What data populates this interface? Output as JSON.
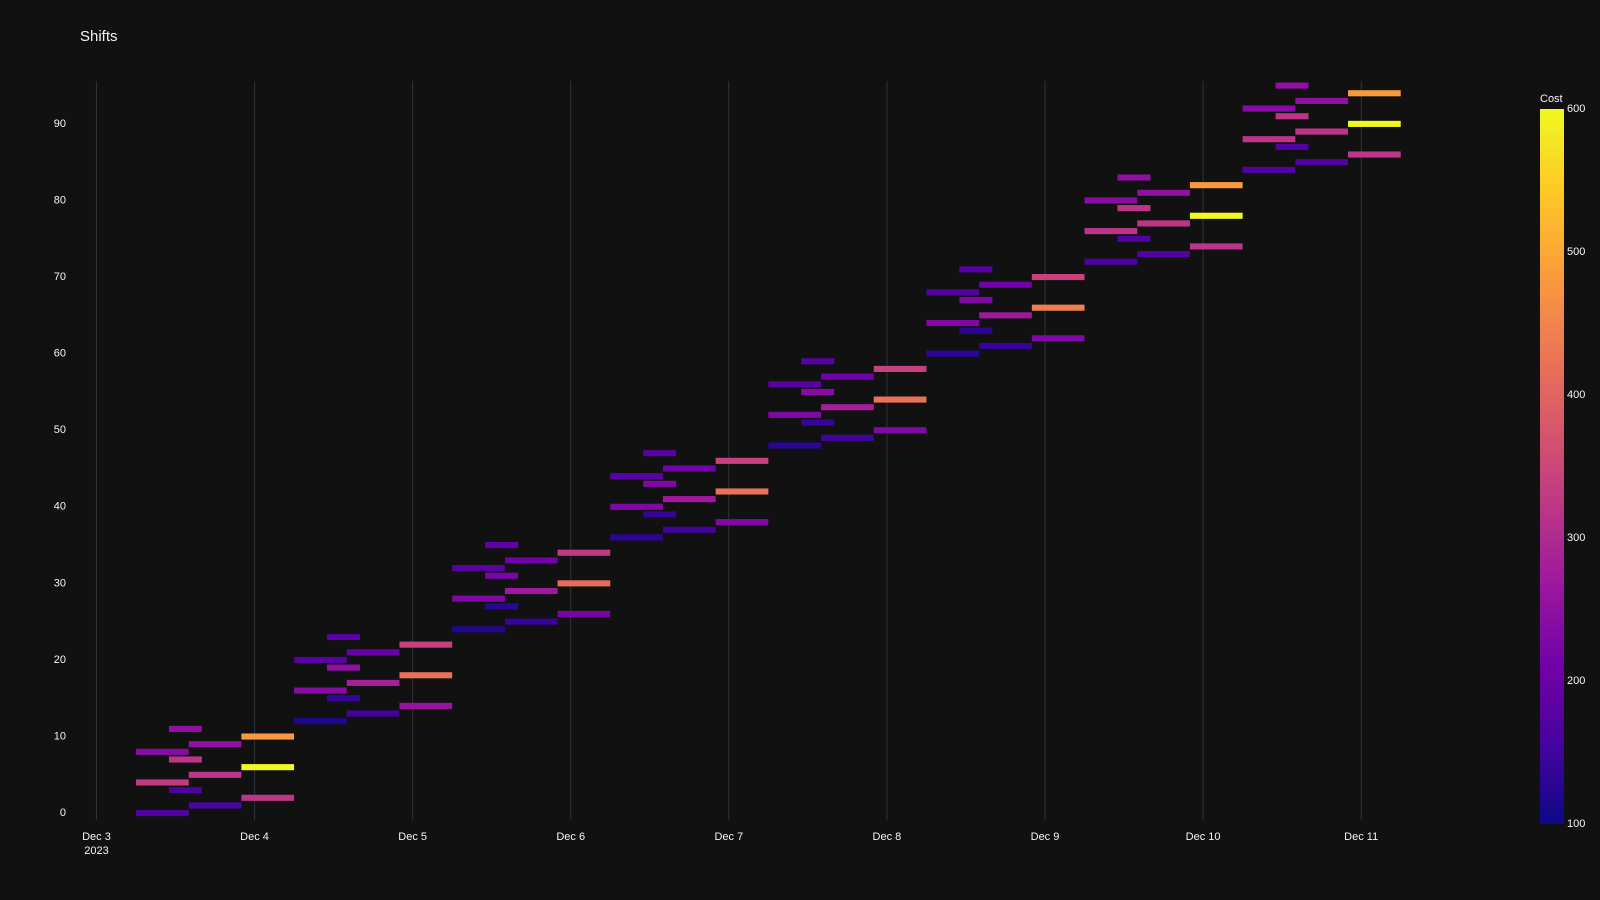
{
  "chart_data": {
    "type": "timeline",
    "title": "Shifts",
    "y": [
      0,
      1,
      2,
      3,
      4,
      5,
      6,
      7,
      8,
      9,
      10,
      11,
      12,
      13,
      14,
      15,
      16,
      17,
      18,
      19,
      20,
      21,
      22,
      23,
      24,
      25,
      26,
      27,
      28,
      29,
      30,
      31,
      32,
      33,
      34,
      35,
      36,
      37,
      38,
      39,
      40,
      41,
      42,
      43,
      44,
      45,
      46,
      47,
      48,
      49,
      50,
      51,
      52,
      53,
      54,
      55,
      56,
      57,
      58,
      59,
      60,
      61,
      62,
      63,
      64,
      65,
      66,
      67,
      68,
      69,
      70,
      71,
      72,
      73,
      74,
      75,
      76,
      77,
      78,
      79,
      80,
      81,
      82,
      83,
      84,
      85,
      86,
      87,
      88,
      89,
      90,
      91,
      92,
      93,
      94,
      95
    ],
    "start": [
      "2023-12-03T06:00",
      "2023-12-03T14:00",
      "2023-12-03T22:00",
      "2023-12-03T11:00",
      "2023-12-03T06:00",
      "2023-12-03T14:00",
      "2023-12-03T22:00",
      "2023-12-03T11:00",
      "2023-12-03T06:00",
      "2023-12-03T14:00",
      "2023-12-03T22:00",
      "2023-12-03T11:00",
      "2023-12-04T06:00",
      "2023-12-04T14:00",
      "2023-12-04T22:00",
      "2023-12-04T11:00",
      "2023-12-04T06:00",
      "2023-12-04T14:00",
      "2023-12-04T22:00",
      "2023-12-04T11:00",
      "2023-12-04T06:00",
      "2023-12-04T14:00",
      "2023-12-04T22:00",
      "2023-12-04T11:00",
      "2023-12-05T06:00",
      "2023-12-05T14:00",
      "2023-12-05T22:00",
      "2023-12-05T11:00",
      "2023-12-05T06:00",
      "2023-12-05T14:00",
      "2023-12-05T22:00",
      "2023-12-05T11:00",
      "2023-12-05T06:00",
      "2023-12-05T14:00",
      "2023-12-05T22:00",
      "2023-12-05T11:00",
      "2023-12-06T06:00",
      "2023-12-06T14:00",
      "2023-12-06T22:00",
      "2023-12-06T11:00",
      "2023-12-06T06:00",
      "2023-12-06T14:00",
      "2023-12-06T22:00",
      "2023-12-06T11:00",
      "2023-12-06T06:00",
      "2023-12-06T14:00",
      "2023-12-06T22:00",
      "2023-12-06T11:00",
      "2023-12-07T06:00",
      "2023-12-07T14:00",
      "2023-12-07T22:00",
      "2023-12-07T11:00",
      "2023-12-07T06:00",
      "2023-12-07T14:00",
      "2023-12-07T22:00",
      "2023-12-07T11:00",
      "2023-12-07T06:00",
      "2023-12-07T14:00",
      "2023-12-07T22:00",
      "2023-12-07T11:00",
      "2023-12-08T06:00",
      "2023-12-08T14:00",
      "2023-12-08T22:00",
      "2023-12-08T11:00",
      "2023-12-08T06:00",
      "2023-12-08T14:00",
      "2023-12-08T22:00",
      "2023-12-08T11:00",
      "2023-12-08T06:00",
      "2023-12-08T14:00",
      "2023-12-08T22:00",
      "2023-12-08T11:00",
      "2023-12-09T06:00",
      "2023-12-09T14:00",
      "2023-12-09T22:00",
      "2023-12-09T11:00",
      "2023-12-09T06:00",
      "2023-12-09T14:00",
      "2023-12-09T22:00",
      "2023-12-09T11:00",
      "2023-12-09T06:00",
      "2023-12-09T14:00",
      "2023-12-09T22:00",
      "2023-12-09T11:00",
      "2023-12-10T06:00",
      "2023-12-10T14:00",
      "2023-12-10T22:00",
      "2023-12-10T11:00",
      "2023-12-10T06:00",
      "2023-12-10T14:00",
      "2023-12-10T22:00",
      "2023-12-10T11:00",
      "2023-12-10T06:00",
      "2023-12-10T14:00",
      "2023-12-10T22:00",
      "2023-12-10T11:00"
    ],
    "end": [
      "2023-12-03T14:00",
      "2023-12-03T22:00",
      "2023-12-04T06:00",
      "2023-12-03T16:00",
      "2023-12-03T14:00",
      "2023-12-03T22:00",
      "2023-12-04T06:00",
      "2023-12-03T16:00",
      "2023-12-03T14:00",
      "2023-12-03T22:00",
      "2023-12-04T06:00",
      "2023-12-03T16:00",
      "2023-12-04T14:00",
      "2023-12-04T22:00",
      "2023-12-05T06:00",
      "2023-12-04T16:00",
      "2023-12-04T14:00",
      "2023-12-04T22:00",
      "2023-12-05T06:00",
      "2023-12-04T16:00",
      "2023-12-04T14:00",
      "2023-12-04T22:00",
      "2023-12-05T06:00",
      "2023-12-04T16:00",
      "2023-12-05T14:00",
      "2023-12-05T22:00",
      "2023-12-06T06:00",
      "2023-12-05T16:00",
      "2023-12-05T14:00",
      "2023-12-05T22:00",
      "2023-12-06T06:00",
      "2023-12-05T16:00",
      "2023-12-05T14:00",
      "2023-12-05T22:00",
      "2023-12-06T06:00",
      "2023-12-05T16:00",
      "2023-12-06T14:00",
      "2023-12-06T22:00",
      "2023-12-07T06:00",
      "2023-12-06T16:00",
      "2023-12-06T14:00",
      "2023-12-06T22:00",
      "2023-12-07T06:00",
      "2023-12-06T16:00",
      "2023-12-06T14:00",
      "2023-12-06T22:00",
      "2023-12-07T06:00",
      "2023-12-06T16:00",
      "2023-12-07T14:00",
      "2023-12-07T22:00",
      "2023-12-08T06:00",
      "2023-12-07T16:00",
      "2023-12-07T14:00",
      "2023-12-07T22:00",
      "2023-12-08T06:00",
      "2023-12-07T16:00",
      "2023-12-07T14:00",
      "2023-12-07T22:00",
      "2023-12-08T06:00",
      "2023-12-07T16:00",
      "2023-12-08T14:00",
      "2023-12-08T22:00",
      "2023-12-09T06:00",
      "2023-12-08T16:00",
      "2023-12-08T14:00",
      "2023-12-08T22:00",
      "2023-12-09T06:00",
      "2023-12-08T16:00",
      "2023-12-08T14:00",
      "2023-12-08T22:00",
      "2023-12-09T06:00",
      "2023-12-08T16:00",
      "2023-12-09T14:00",
      "2023-12-09T22:00",
      "2023-12-10T06:00",
      "2023-12-09T16:00",
      "2023-12-09T14:00",
      "2023-12-09T22:00",
      "2023-12-10T06:00",
      "2023-12-09T16:00",
      "2023-12-09T14:00",
      "2023-12-09T22:00",
      "2023-12-10T06:00",
      "2023-12-09T16:00",
      "2023-12-10T14:00",
      "2023-12-10T22:00",
      "2023-12-11T06:00",
      "2023-12-10T16:00",
      "2023-12-10T14:00",
      "2023-12-10T22:00",
      "2023-12-11T06:00",
      "2023-12-10T16:00",
      "2023-12-10T14:00",
      "2023-12-10T22:00",
      "2023-12-11T06:00",
      "2023-12-10T16:00"
    ],
    "values": [
      170,
      165,
      320,
      160,
      330,
      320,
      600,
      320,
      240,
      250,
      480,
      250,
      120,
      150,
      260,
      140,
      240,
      280,
      420,
      250,
      180,
      200,
      340,
      180,
      120,
      140,
      220,
      130,
      230,
      270,
      410,
      220,
      180,
      210,
      330,
      190,
      130,
      150,
      230,
      140,
      230,
      270,
      420,
      230,
      180,
      210,
      340,
      180,
      130,
      150,
      230,
      140,
      230,
      280,
      420,
      240,
      180,
      210,
      340,
      180,
      130,
      140,
      230,
      130,
      230,
      270,
      440,
      230,
      170,
      210,
      340,
      180,
      160,
      170,
      320,
      170,
      320,
      320,
      600,
      320,
      240,
      250,
      480,
      250,
      170,
      170,
      320,
      170,
      320,
      320,
      600,
      320,
      240,
      250,
      480,
      250
    ],
    "xlim": [
      "2023-12-02T21:30",
      "2023-12-11T15:00"
    ],
    "xticks": [
      {
        "value": "2023-12-03T00:00",
        "label": "Dec 3"
      },
      {
        "value": "2023-12-04T00:00",
        "label": "Dec 4"
      },
      {
        "value": "2023-12-05T00:00",
        "label": "Dec 5"
      },
      {
        "value": "2023-12-06T00:00",
        "label": "Dec 6"
      },
      {
        "value": "2023-12-07T00:00",
        "label": "Dec 7"
      },
      {
        "value": "2023-12-08T00:00",
        "label": "Dec 8"
      },
      {
        "value": "2023-12-09T00:00",
        "label": "Dec 9"
      },
      {
        "value": "2023-12-10T00:00",
        "label": "Dec 10"
      },
      {
        "value": "2023-12-11T00:00",
        "label": "Dec 11"
      }
    ],
    "xtick_year": "2023",
    "ylim": [
      -0.9,
      95.6
    ],
    "yticks": [
      0,
      10,
      20,
      30,
      40,
      50,
      60,
      70,
      80,
      90
    ],
    "grid": true,
    "colorbar": {
      "title": "Cost",
      "cmin": 100,
      "cmax": 600,
      "ticks": [
        100,
        200,
        300,
        400,
        500,
        600
      ]
    },
    "colorscale": [
      "#0d0887",
      "#46039f",
      "#7201a8",
      "#9c179e",
      "#bd3786",
      "#d8576b",
      "#ed7953",
      "#fb9f3a",
      "#fdca26",
      "#f0f921"
    ]
  }
}
